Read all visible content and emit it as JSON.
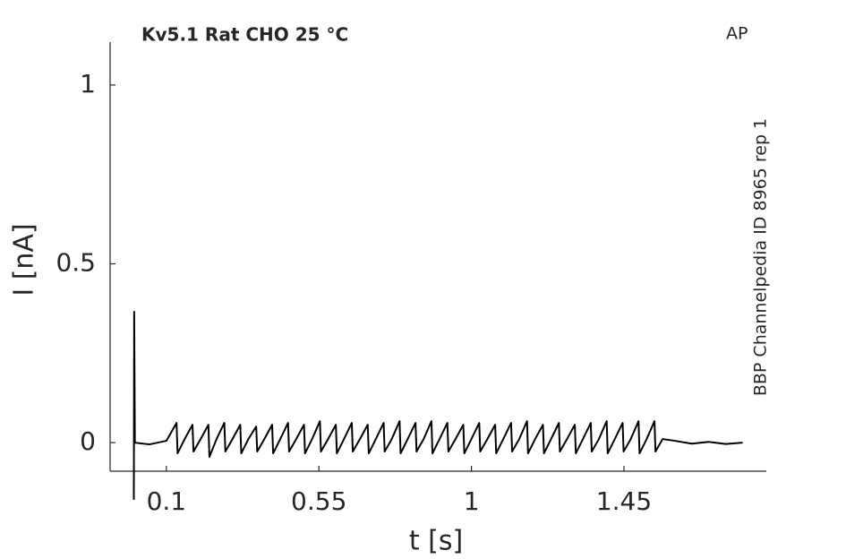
{
  "chart_data": {
    "type": "line",
    "title": "Kv5.1  Rat  CHO  25 °C",
    "annotation": "AP",
    "side_label": "BBP Channelpedia ID 8965 rep 1",
    "xlabel": "t [s]",
    "ylabel": "I [nA]",
    "color": "#000000",
    "xlim": [
      -0.066,
      1.87
    ],
    "ylim": [
      -0.08,
      1.12
    ],
    "xticks": [
      0.1,
      0.55,
      1,
      1.45
    ],
    "yticks": [
      0,
      0.5,
      1
    ],
    "grid": false,
    "x": [
      0.004,
      0.005,
      0.007,
      0.05,
      0.1,
      0.13,
      0.133,
      0.154,
      0.177,
      0.18,
      0.201,
      0.224,
      0.227,
      0.248,
      0.271,
      0.274,
      0.295,
      0.318,
      0.321,
      0.342,
      0.365,
      0.368,
      0.389,
      0.412,
      0.415,
      0.436,
      0.459,
      0.462,
      0.483,
      0.506,
      0.509,
      0.53,
      0.553,
      0.556,
      0.577,
      0.6,
      0.603,
      0.624,
      0.647,
      0.65,
      0.671,
      0.694,
      0.697,
      0.718,
      0.741,
      0.744,
      0.765,
      0.788,
      0.791,
      0.812,
      0.835,
      0.838,
      0.859,
      0.882,
      0.885,
      0.906,
      0.929,
      0.932,
      0.953,
      0.976,
      0.979,
      1,
      1.023,
      1.026,
      1.047,
      1.07,
      1.073,
      1.094,
      1.117,
      1.12,
      1.141,
      1.164,
      1.167,
      1.188,
      1.211,
      1.214,
      1.235,
      1.258,
      1.261,
      1.282,
      1.305,
      1.308,
      1.329,
      1.352,
      1.355,
      1.376,
      1.399,
      1.402,
      1.423,
      1.446,
      1.449,
      1.47,
      1.493,
      1.496,
      1.517,
      1.54,
      1.543,
      1.564,
      1.6,
      1.65,
      1.7,
      1.75,
      1.8
    ],
    "values": [
      -0.16,
      0.366,
      0,
      -0.005,
      0.005,
      0.055,
      -0.03,
      0.01,
      0.05,
      -0.025,
      0.01,
      0.05,
      -0.04,
      0.01,
      0.055,
      -0.025,
      0.01,
      0.05,
      -0.03,
      0.01,
      0.045,
      -0.025,
      0.01,
      0.05,
      -0.03,
      0.01,
      0.055,
      -0.025,
      0.01,
      0.05,
      -0.03,
      0.01,
      0.06,
      -0.025,
      0.01,
      0.05,
      -0.03,
      0.01,
      0.055,
      -0.025,
      0.01,
      0.05,
      -0.03,
      0.01,
      0.055,
      -0.025,
      0.01,
      0.06,
      -0.03,
      0.01,
      0.055,
      -0.025,
      0.01,
      0.06,
      -0.03,
      0.01,
      0.055,
      -0.025,
      0.01,
      0.05,
      -0.03,
      0.01,
      0.055,
      -0.025,
      0.01,
      0.05,
      -0.03,
      0.01,
      0.055,
      -0.025,
      0.01,
      0.06,
      -0.03,
      0.01,
      0.05,
      -0.03,
      0.01,
      0.055,
      -0.025,
      0.01,
      0.05,
      -0.03,
      0.01,
      0.055,
      -0.025,
      0.01,
      0.06,
      -0.03,
      0.01,
      0.055,
      -0.025,
      0.01,
      0.06,
      -0.03,
      0.01,
      0.06,
      -0.025,
      0.01,
      0.005,
      -0.003,
      0.002,
      -0.004,
      0
    ]
  }
}
